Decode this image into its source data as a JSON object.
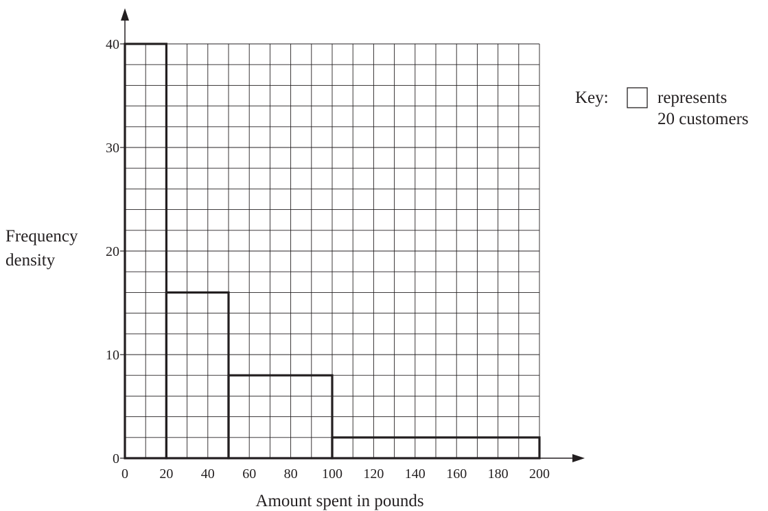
{
  "chart_data": {
    "type": "histogram",
    "xlabel": "Amount spent in pounds",
    "ylabel_lines": [
      "Frequency",
      "density"
    ],
    "xlim": [
      0,
      200
    ],
    "ylim": [
      0,
      40
    ],
    "x_ticks": [
      0,
      20,
      40,
      60,
      80,
      100,
      120,
      140,
      160,
      180,
      200
    ],
    "y_ticks": [
      0,
      10,
      20,
      30,
      40
    ],
    "grid": true,
    "grid_minor_x": 10,
    "grid_minor_y": 2,
    "bins": [
      {
        "x0": 0,
        "x1": 20,
        "density": 40
      },
      {
        "x0": 20,
        "x1": 50,
        "density": 16
      },
      {
        "x0": 50,
        "x1": 100,
        "density": 8
      },
      {
        "x0": 100,
        "x1": 200,
        "density": 2
      }
    ],
    "key": {
      "label": "Key:",
      "lines": [
        "represents",
        "20 customers"
      ]
    }
  }
}
